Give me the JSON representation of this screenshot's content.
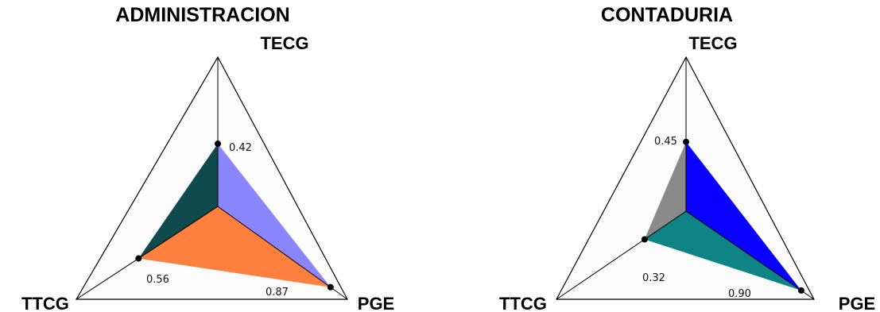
{
  "chart_data": [
    {
      "type": "radar",
      "title": "ADMINISTRACION",
      "axes": [
        "TECG",
        "PGE",
        "TTCG"
      ],
      "values": [
        0.42,
        0.87,
        0.56
      ],
      "value_labels": [
        "0.42",
        "0.87",
        "0.56"
      ],
      "range": [
        0,
        1
      ],
      "grid": false,
      "colors": {
        "tecg_pge": "#8a86ff",
        "pge_ttcg": "#ff7f3f",
        "ttcg_tecg": "#0f4a4e",
        "frame_fill": "#fcfcfc",
        "frame_stroke": "#000000"
      }
    },
    {
      "type": "radar",
      "title": "CONTADURIA",
      "axes": [
        "TECG",
        "PGE",
        "TTCG"
      ],
      "values": [
        0.45,
        0.9,
        0.32
      ],
      "value_labels": [
        "0.45",
        "0.90",
        "0.32"
      ],
      "range": [
        0,
        1
      ],
      "grid": false,
      "colors": {
        "tecg_pge": "#0a00ff",
        "pge_ttcg": "#0f8484",
        "ttcg_tecg": "#8a8a8a",
        "frame_fill": "#fcfcfc",
        "frame_stroke": "#000000"
      }
    }
  ]
}
